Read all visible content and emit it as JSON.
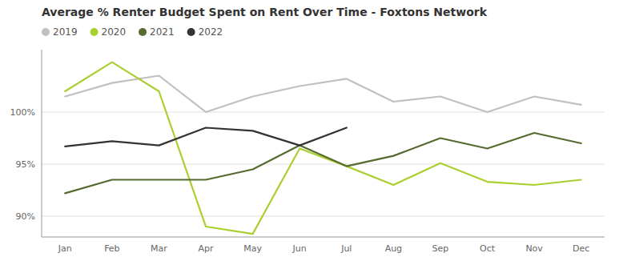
{
  "chart_data": {
    "type": "line",
    "title": "Average % Renter Budget Spent on Rent Over Time - Foxtons Network",
    "categories": [
      "Jan",
      "Feb",
      "Mar",
      "Apr",
      "May",
      "Jun",
      "Jul",
      "Aug",
      "Sep",
      "Oct",
      "Nov",
      "Dec"
    ],
    "series": [
      {
        "name": "2019",
        "color": "#c0c0c0",
        "values": [
          101.5,
          102.8,
          103.5,
          100.0,
          101.5,
          102.5,
          103.2,
          101.0,
          101.5,
          100.0,
          101.5,
          100.7
        ]
      },
      {
        "name": "2020",
        "color": "#aacf30",
        "values": [
          102.0,
          104.8,
          102.0,
          89.0,
          88.3,
          96.5,
          94.8,
          93.0,
          95.1,
          93.3,
          93.0,
          93.5
        ]
      },
      {
        "name": "2021",
        "color": "#556b2f",
        "values": [
          92.2,
          93.5,
          93.5,
          93.5,
          94.5,
          96.8,
          94.8,
          95.8,
          97.5,
          96.5,
          98.0,
          97.0
        ]
      },
      {
        "name": "2022",
        "color": "#333333",
        "values": [
          96.7,
          97.2,
          96.8,
          98.5,
          98.2,
          96.8,
          98.5,
          null,
          null,
          null,
          null,
          null
        ]
      }
    ],
    "ylim": [
      88,
      106
    ],
    "yticks": [
      {
        "value": 90,
        "label": "90%"
      },
      {
        "value": 95,
        "label": "95%"
      },
      {
        "value": 100,
        "label": "100%"
      }
    ],
    "grid": true,
    "legend": "top"
  }
}
